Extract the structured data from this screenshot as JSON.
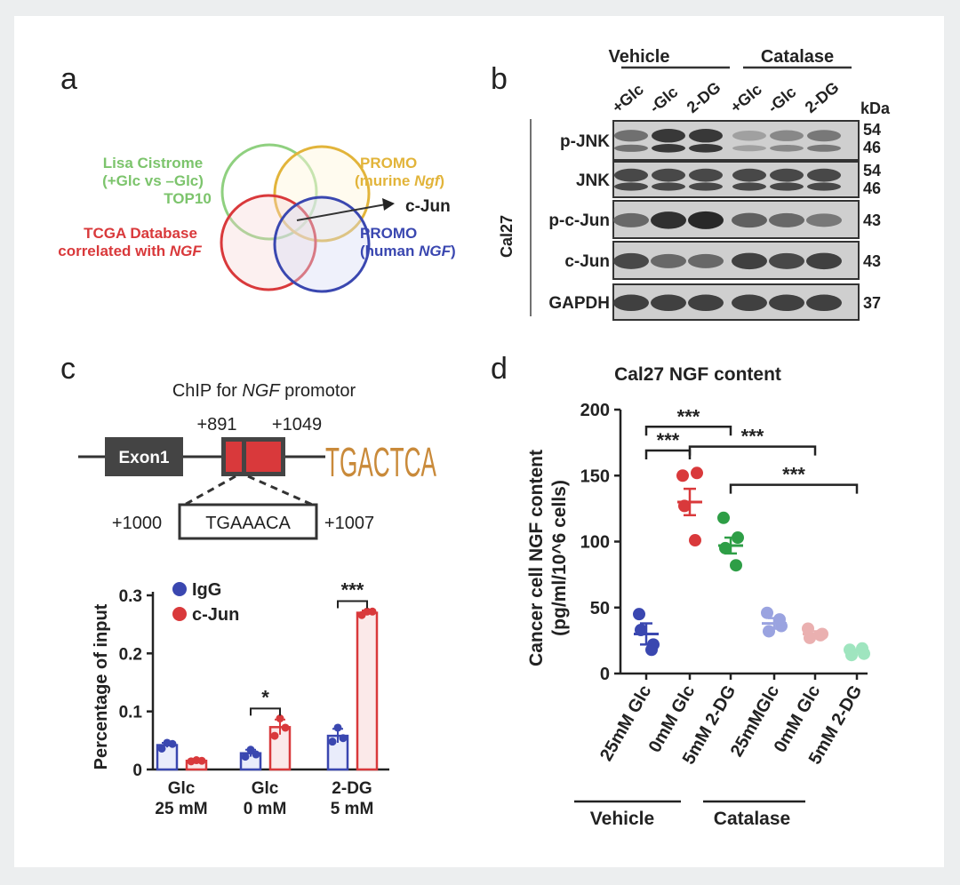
{
  "panel_labels": {
    "a": "a",
    "b": "b",
    "c": "c",
    "d": "d"
  },
  "colors": {
    "green": "#7cc46c",
    "yellow": "#e2b43a",
    "red": "#d9393b",
    "blue": "#3a47b0",
    "darkgreen": "#2e9e46",
    "lightblue": "#9aa3e0",
    "pink": "#eab0b0",
    "mint": "#9fe5bf"
  },
  "venn": {
    "green_label_1": "Lisa Cistrome",
    "green_label_2": "(+Glc vs –Glc)",
    "green_label_3": "TOP10",
    "yellow_label_1": "PROMO",
    "yellow_label_2a": "(murine ",
    "yellow_label_2b": "Ngf",
    "yellow_label_2c": ")",
    "red_label_1": "TCGA Database",
    "red_label_2a": "correlated with ",
    "red_label_2b": "NGF",
    "blue_label_1": "PROMO",
    "blue_label_2a": "(human ",
    "blue_label_2b": "NGF",
    "blue_label_2c": ")",
    "result": "c-Jun"
  },
  "blot": {
    "cell_line": "Cal27",
    "groups": [
      "Vehicle",
      "Catalase"
    ],
    "lanes": [
      "+Glc",
      "-Glc",
      "2-DG",
      "+Glc",
      "-Glc",
      "2-DG"
    ],
    "kda_label": "kDa",
    "rows": [
      {
        "name": "p-JNK",
        "kda": [
          "54",
          "46"
        ],
        "intensity": [
          0.55,
          0.9,
          0.9,
          0.25,
          0.4,
          0.5
        ]
      },
      {
        "name": "JNK",
        "kda": [
          "54",
          "46"
        ],
        "intensity": [
          0.8,
          0.8,
          0.8,
          0.8,
          0.8,
          0.8
        ]
      },
      {
        "name": "p-c-Jun",
        "kda": [
          "43"
        ],
        "intensity": [
          0.6,
          0.95,
          1.0,
          0.65,
          0.6,
          0.5
        ]
      },
      {
        "name": "c-Jun",
        "kda": [
          "43"
        ],
        "intensity": [
          0.8,
          0.6,
          0.6,
          0.85,
          0.8,
          0.85
        ]
      },
      {
        "name": "GAPDH",
        "kda": [
          "37"
        ],
        "intensity": [
          0.85,
          0.85,
          0.85,
          0.85,
          0.85,
          0.85
        ]
      }
    ]
  },
  "chip": {
    "title_a": "ChIP for ",
    "title_b": "NGF",
    "title_c": " promotor",
    "exon": "Exon1",
    "pos1": "+891",
    "pos2": "+1049",
    "pos3": "+1000",
    "pos4": "+1007",
    "site": "TGAAACA",
    "motif": "TGACTCA"
  },
  "chart_data": [
    {
      "type": "bar",
      "ylabel": "Percentage of input",
      "ylim": [
        0,
        0.3
      ],
      "yticks": [
        "0",
        "0.1",
        "0.2",
        "0.3"
      ],
      "categories": [
        [
          "Glc",
          "25 mM"
        ],
        [
          "Glc",
          "0 mM"
        ],
        [
          "2-DG",
          "5 mM"
        ]
      ],
      "series": [
        {
          "name": "IgG",
          "values": [
            0.042,
            0.028,
            0.058
          ],
          "errors": [
            0.004,
            0.006,
            0.012
          ],
          "points": [
            [
              0.036,
              0.046,
              0.044
            ],
            [
              0.022,
              0.034,
              0.026
            ],
            [
              0.048,
              0.072,
              0.054
            ]
          ]
        },
        {
          "name": "c-Jun",
          "values": [
            0.015,
            0.073,
            0.27
          ],
          "errors": [
            0.002,
            0.013,
            0.004
          ],
          "points": [
            [
              0.014,
              0.016,
              0.015
            ],
            [
              0.058,
              0.088,
              0.072
            ],
            [
              0.266,
              0.272,
              0.272
            ]
          ]
        }
      ],
      "significance": [
        "*",
        "***"
      ],
      "legend": "top-left"
    },
    {
      "type": "scatter",
      "title": "Cal27 NGF content",
      "ylabel_1": "Cancer cell NGF content",
      "ylabel_2": "(pg/ml/10^6 cells)",
      "ylim": [
        0,
        200
      ],
      "yticks": [
        "0",
        "50",
        "100",
        "150",
        "200"
      ],
      "categories": [
        "25mM Glc",
        "0mM Glc",
        "5mM 2-DG",
        "25mMGlc",
        "0mM Glc",
        "5mM 2-DG"
      ],
      "groups": [
        "Vehicle",
        "Catalase"
      ],
      "means": [
        30,
        130,
        97,
        38,
        30,
        17
      ],
      "sem": [
        8,
        10,
        6,
        4,
        2,
        1
      ],
      "points": [
        [
          45,
          22,
          33,
          18
        ],
        [
          150,
          152,
          127,
          101
        ],
        [
          118,
          103,
          95,
          82
        ],
        [
          46,
          36,
          32,
          41
        ],
        [
          34,
          30,
          27,
          29
        ],
        [
          18,
          15,
          14,
          19
        ]
      ],
      "significance": [
        "***",
        "***",
        "***",
        "***"
      ]
    }
  ]
}
